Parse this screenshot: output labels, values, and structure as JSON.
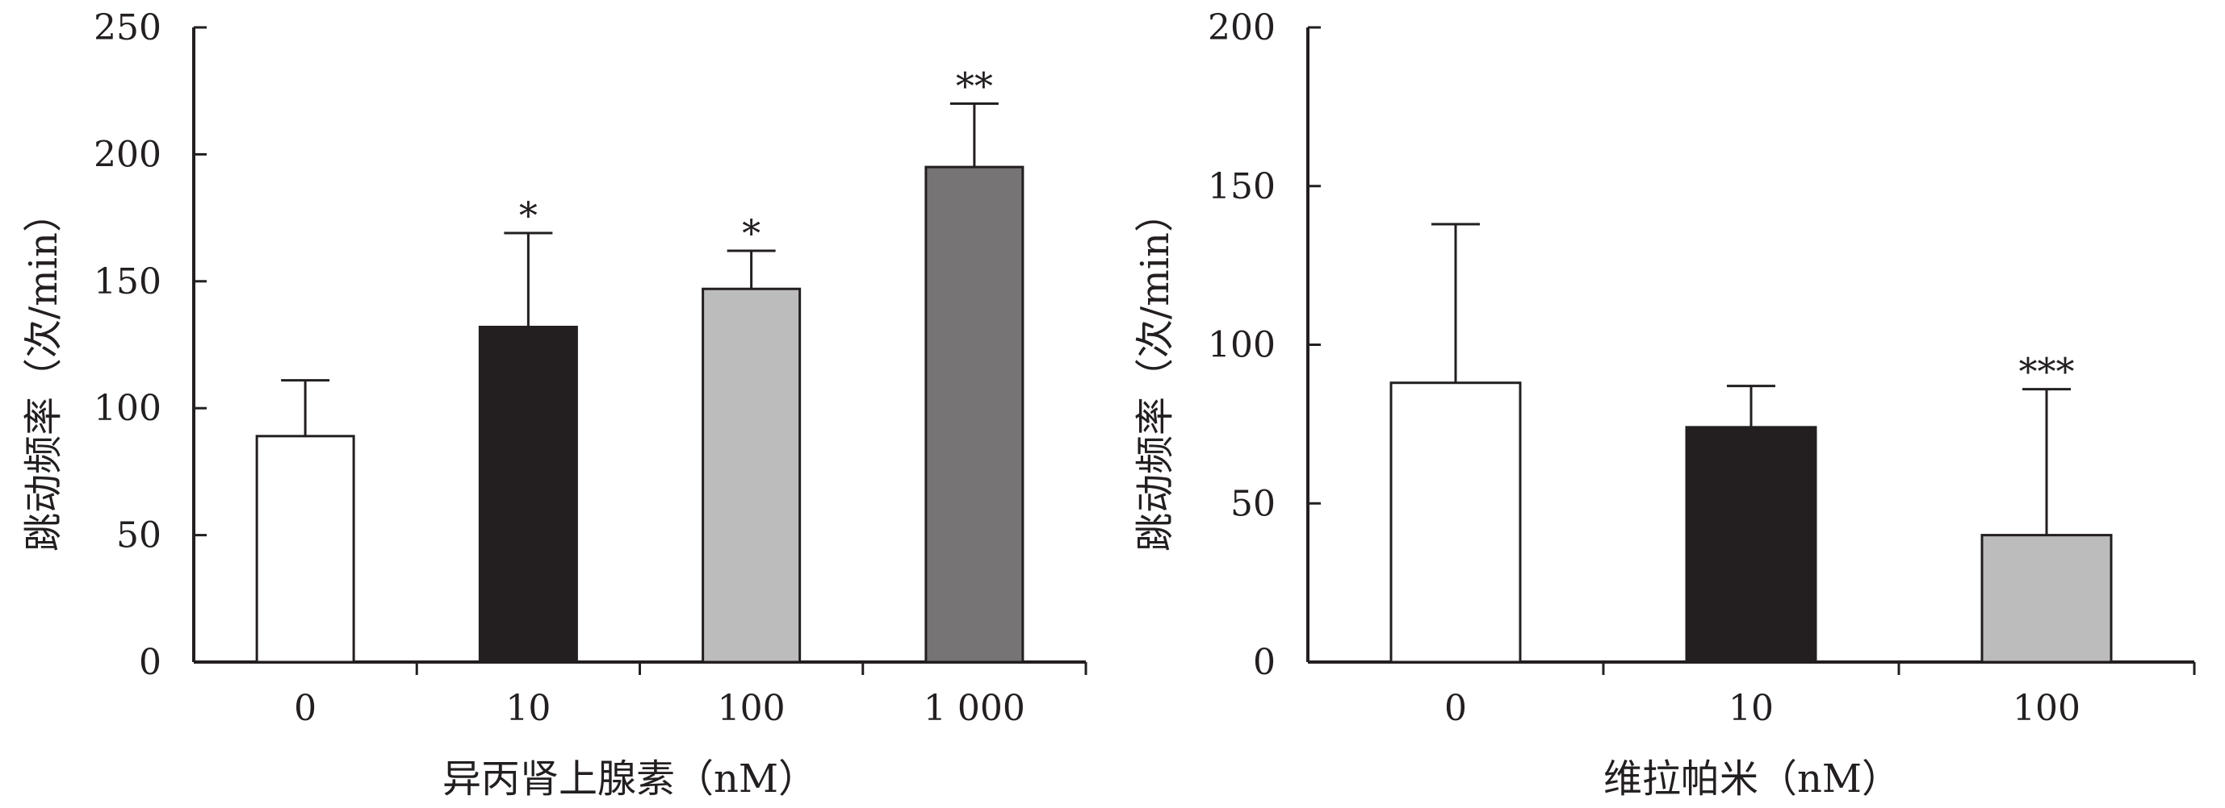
{
  "chart_data": [
    {
      "type": "bar",
      "title": "",
      "xlabel": "异丙肾上腺素（nM）",
      "ylabel": "跳动频率（次/min）",
      "categories": [
        "0",
        "10",
        "100",
        "1 000"
      ],
      "values": [
        89,
        132,
        147,
        195
      ],
      "error_upper": [
        111,
        169,
        162,
        220
      ],
      "significance": [
        "",
        "*",
        "*",
        "**"
      ],
      "bar_colors": [
        "#ffffff",
        "#231f20",
        "#bcbcbc",
        "#767474"
      ],
      "ylim": [
        0,
        250
      ],
      "yticks": [
        "0",
        "50",
        "100",
        "150",
        "200",
        "250"
      ],
      "grid": false
    },
    {
      "type": "bar",
      "title": "",
      "xlabel": "维拉帕米（nM）",
      "ylabel": "跳动频率（次/min）",
      "categories": [
        "0",
        "10",
        "100"
      ],
      "values": [
        88,
        74,
        40
      ],
      "error_upper": [
        138,
        87,
        86
      ],
      "significance": [
        "",
        "",
        "***"
      ],
      "bar_colors": [
        "#ffffff",
        "#231f20",
        "#bcbcbc"
      ],
      "ylim": [
        0,
        200
      ],
      "yticks": [
        "0",
        "50",
        "100",
        "150",
        "200"
      ],
      "grid": false
    }
  ]
}
